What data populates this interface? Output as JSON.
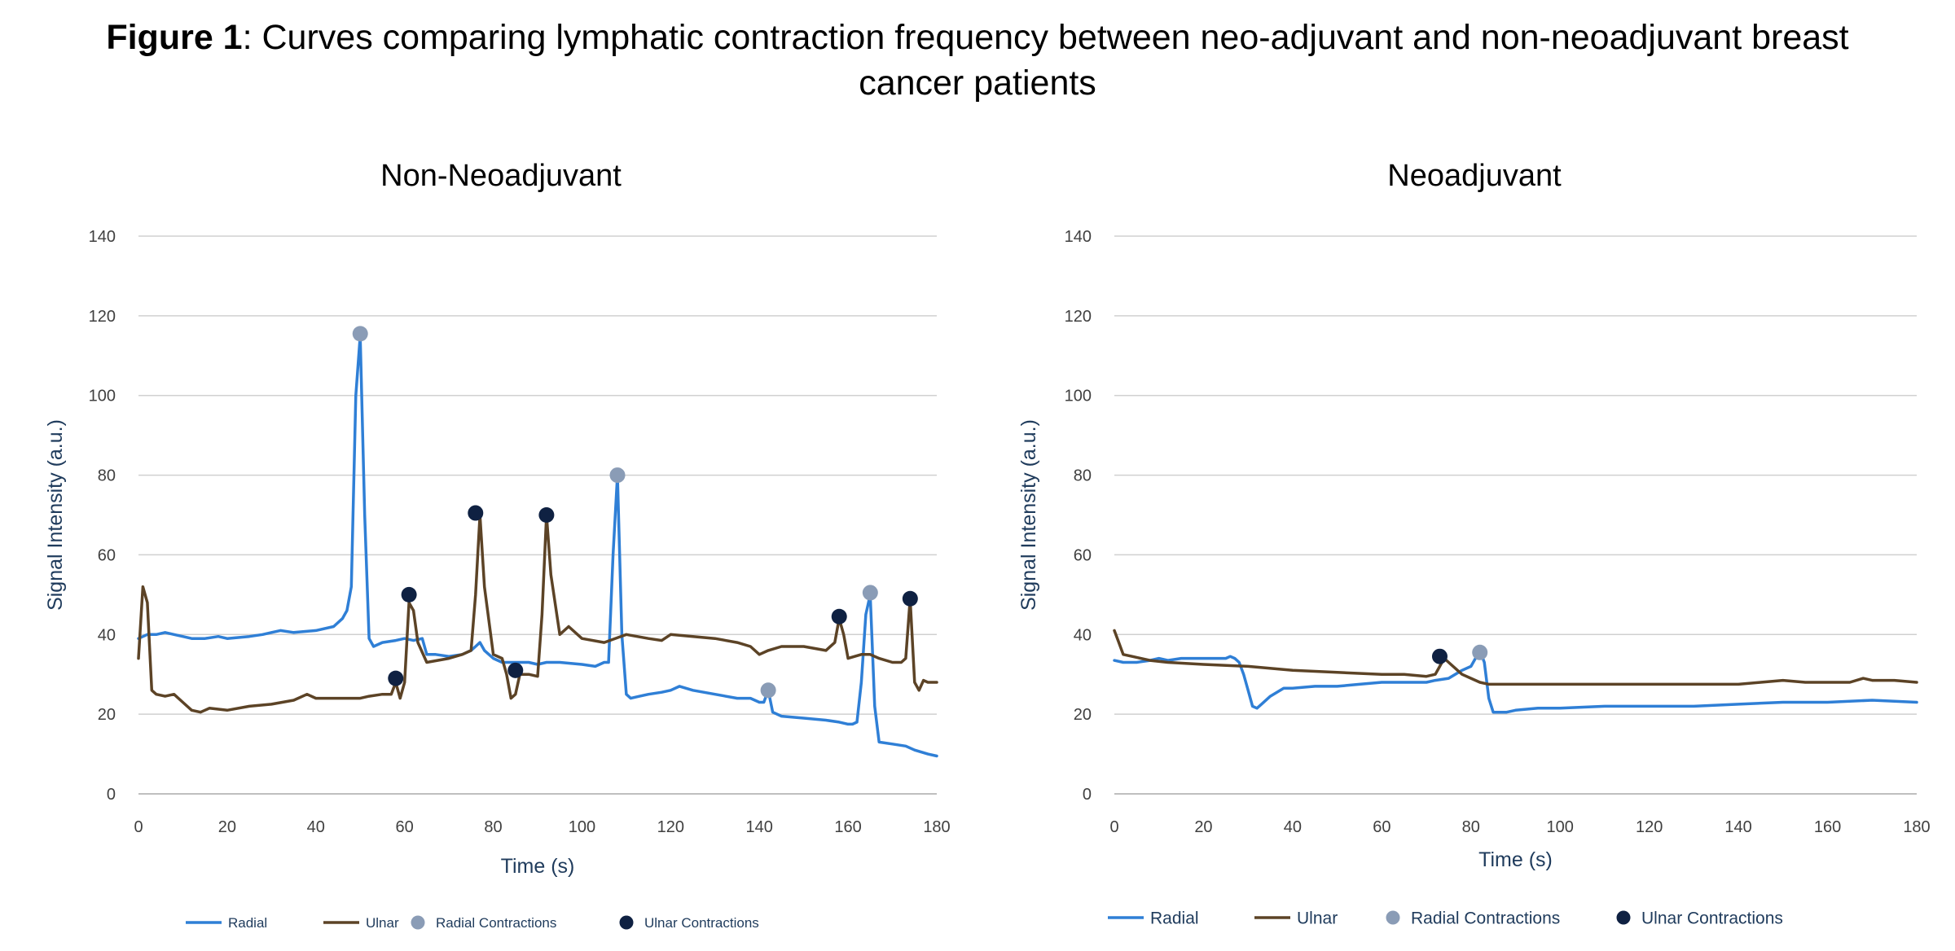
{
  "caption": {
    "label": "Figure 1",
    "text": ": Curves comparing lymphatic contraction frequency between neo-adjuvant and non-neoadjuvant breast cancer patients"
  },
  "colors": {
    "radial": "#2f7fd6",
    "ulnar": "#5c4326",
    "radial_contraction": "#8a9cb6",
    "ulnar_contraction": "#0f2142",
    "gridline": "#d0d0d0"
  },
  "chart_data": [
    {
      "type": "line",
      "title": "Non-Neoadjuvant",
      "xlabel": "Time (s)",
      "ylabel": "Signal Intensity (a.u.)",
      "xlim": [
        0,
        180
      ],
      "ylim": [
        0,
        140
      ],
      "xticks": [
        0,
        20,
        40,
        60,
        80,
        100,
        120,
        140,
        160,
        180
      ],
      "yticks": [
        0,
        20,
        40,
        60,
        80,
        100,
        120,
        140
      ],
      "grid": true,
      "legend_position": "bottom",
      "series": [
        {
          "name": "Radial",
          "kind": "line",
          "color_key": "radial",
          "x": [
            0,
            2,
            4,
            6,
            8,
            10,
            12,
            15,
            18,
            20,
            25,
            28,
            30,
            32,
            35,
            40,
            44,
            46,
            47,
            48,
            49,
            50,
            51,
            52,
            53,
            55,
            58,
            60,
            62,
            64,
            65,
            67,
            70,
            73,
            75,
            76,
            77,
            78,
            80,
            82,
            85,
            88,
            90,
            92,
            95,
            100,
            103,
            105,
            106,
            107,
            108,
            109,
            110,
            111,
            113,
            115,
            118,
            120,
            122,
            125,
            130,
            135,
            138,
            140,
            141,
            142,
            143,
            145,
            150,
            155,
            158,
            160,
            161,
            162,
            163,
            164,
            165,
            166,
            167,
            170,
            173,
            175,
            178,
            180
          ],
          "y": [
            39,
            40,
            40,
            40.5,
            40,
            39.5,
            39,
            39,
            39.5,
            39,
            39.5,
            40,
            40.5,
            41,
            40.5,
            41,
            42,
            44,
            46,
            52,
            100,
            115,
            70,
            39,
            37,
            38,
            38.5,
            39,
            38.5,
            39,
            35,
            35,
            34.5,
            35,
            36,
            37,
            38,
            36,
            34,
            33,
            33,
            33,
            32.5,
            33,
            33,
            32.5,
            32,
            33,
            33,
            60,
            80,
            40,
            25,
            24,
            24.5,
            25,
            25.5,
            26,
            27,
            26,
            25,
            24,
            24,
            23,
            23,
            26,
            20.5,
            19.5,
            19,
            18.5,
            18,
            17.5,
            17.5,
            18,
            28,
            45,
            50,
            22,
            13,
            12.5,
            12,
            11,
            10,
            9.5
          ]
        },
        {
          "name": "Ulnar",
          "kind": "line",
          "color_key": "ulnar",
          "x": [
            0,
            1,
            2,
            3,
            4,
            6,
            8,
            10,
            12,
            14,
            16,
            20,
            25,
            30,
            35,
            38,
            40,
            45,
            50,
            52,
            55,
            57,
            58,
            59,
            60,
            61,
            62,
            63,
            65,
            70,
            73,
            75,
            76,
            77,
            78,
            80,
            82,
            83,
            84,
            85,
            86,
            88,
            90,
            91,
            92,
            93,
            95,
            97,
            100,
            105,
            110,
            115,
            118,
            120,
            125,
            130,
            135,
            138,
            140,
            142,
            145,
            150,
            155,
            157,
            158,
            159,
            160,
            163,
            165,
            167,
            170,
            172,
            173,
            174,
            175,
            176,
            177,
            178,
            180
          ],
          "y": [
            34,
            52,
            48,
            26,
            25,
            24.5,
            25,
            23,
            21,
            20.5,
            21.5,
            21,
            22,
            22.5,
            23.5,
            25,
            24,
            24,
            24,
            24.5,
            25,
            25,
            28,
            24,
            28,
            48,
            46,
            38,
            33,
            34,
            35,
            36,
            50,
            70,
            52,
            35,
            34,
            30,
            24,
            25,
            30,
            30,
            29.5,
            45,
            70,
            55,
            40,
            42,
            39,
            38,
            40,
            39,
            38.5,
            40,
            39.5,
            39,
            38,
            37,
            35,
            36,
            37,
            37,
            36,
            38,
            44,
            40,
            34,
            35,
            35,
            34,
            33,
            33,
            34,
            49,
            28,
            26,
            28.5,
            28,
            28
          ]
        },
        {
          "name": "Radial Contractions",
          "kind": "markers",
          "color_key": "radial_contraction",
          "x": [
            50,
            108,
            142,
            165
          ],
          "y": [
            115.5,
            80,
            26,
            50.5
          ]
        },
        {
          "name": "Ulnar Contractions",
          "kind": "markers",
          "color_key": "ulnar_contraction",
          "x": [
            58,
            61,
            76,
            85,
            92,
            158,
            174
          ],
          "y": [
            29,
            50,
            70.5,
            31,
            70,
            44.5,
            49
          ]
        }
      ]
    },
    {
      "type": "line",
      "title": "Neoadjuvant",
      "xlabel": "Time (s)",
      "ylabel": "Signal Intensity (a.u.)",
      "xlim": [
        0,
        180
      ],
      "ylim": [
        0,
        140
      ],
      "xticks": [
        0,
        20,
        40,
        60,
        80,
        100,
        120,
        140,
        160,
        180
      ],
      "yticks": [
        0,
        20,
        40,
        60,
        80,
        100,
        120,
        140
      ],
      "grid": true,
      "legend_position": "bottom",
      "series": [
        {
          "name": "Radial",
          "kind": "line",
          "color_key": "radial",
          "x": [
            0,
            2,
            5,
            8,
            10,
            12,
            15,
            20,
            25,
            26,
            27,
            28,
            29,
            30,
            31,
            32,
            33,
            35,
            38,
            40,
            45,
            50,
            55,
            60,
            65,
            70,
            72,
            75,
            78,
            80,
            81,
            82,
            83,
            84,
            85,
            86,
            88,
            90,
            95,
            100,
            110,
            120,
            130,
            140,
            150,
            160,
            170,
            180
          ],
          "y": [
            33.5,
            33,
            33,
            33.5,
            34,
            33.5,
            34,
            34,
            34,
            34.5,
            34,
            33,
            30,
            26,
            22,
            21.5,
            22.5,
            24.5,
            26.5,
            26.5,
            27,
            27,
            27.5,
            28,
            28,
            28,
            28.5,
            29,
            31,
            32,
            34,
            36,
            33,
            24,
            20.5,
            20.5,
            20.5,
            21,
            21.5,
            21.5,
            22,
            22,
            22,
            22.5,
            23,
            23,
            23.5,
            23
          ]
        },
        {
          "name": "Ulnar",
          "kind": "line",
          "color_key": "ulnar",
          "x": [
            0,
            1,
            2,
            4,
            8,
            12,
            20,
            30,
            40,
            50,
            60,
            65,
            70,
            72,
            73,
            74,
            75,
            78,
            80,
            82,
            84,
            90,
            100,
            110,
            120,
            130,
            140,
            145,
            150,
            155,
            160,
            165,
            168,
            170,
            175,
            180
          ],
          "y": [
            41,
            38,
            35,
            34.5,
            33.5,
            33,
            32.5,
            32,
            31,
            30.5,
            30,
            30,
            29.5,
            30,
            32,
            34,
            33,
            30,
            29,
            28,
            27.5,
            27.5,
            27.5,
            27.5,
            27.5,
            27.5,
            27.5,
            28,
            28.5,
            28,
            28,
            28,
            29,
            28.5,
            28.5,
            28
          ]
        },
        {
          "name": "Radial Contractions",
          "kind": "markers",
          "color_key": "radial_contraction",
          "x": [
            82
          ],
          "y": [
            35.5
          ]
        },
        {
          "name": "Ulnar Contractions",
          "kind": "markers",
          "color_key": "ulnar_contraction",
          "x": [
            73
          ],
          "y": [
            34.5
          ]
        }
      ]
    }
  ]
}
